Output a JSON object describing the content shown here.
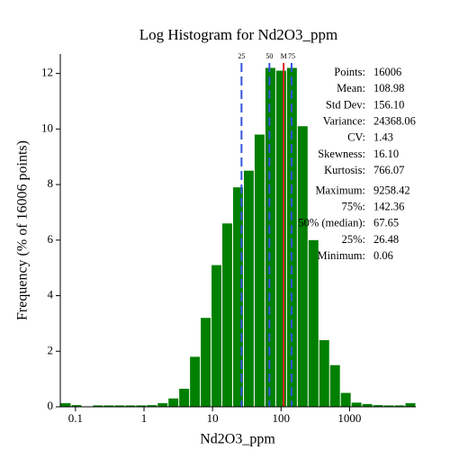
{
  "chart_data": {
    "type": "histogram",
    "title": "Log Histogram for Nd2O3_ppm",
    "x_label": "Nd2O3_ppm",
    "y_label": "Frequency (% of 16006 points)",
    "log_x": true,
    "color": "#008000",
    "bins": [
      0.06,
      0.0862,
      0.1238,
      0.1778,
      0.2553,
      0.3667,
      0.5266,
      0.7563,
      1.086,
      1.56,
      2.241,
      3.218,
      4.622,
      6.638,
      9.533,
      13.69,
      19.66,
      28.24,
      40.56,
      58.25,
      83.66,
      120.2,
      172.6,
      247.8,
      355.9,
      511.2,
      734.2,
      1054,
      1514,
      2175,
      3123,
      4486,
      6442,
      9258.42
    ],
    "values": [
      0.13,
      0.06,
      0,
      0.05,
      0.05,
      0.05,
      0.05,
      0.05,
      0.06,
      0.13,
      0.3,
      0.65,
      1.8,
      3.2,
      5.1,
      6.6,
      7.9,
      8.5,
      9.8,
      12.2,
      12.1,
      12.2,
      10.1,
      6.0,
      2.4,
      1.5,
      0.5,
      0.15,
      0.1,
      0.06,
      0.05,
      0.05,
      0.13
    ],
    "xlim": [
      0.06,
      9258.42
    ],
    "ylim": [
      0,
      12.7
    ],
    "xticks": [
      0.1,
      1,
      10,
      100,
      1000
    ],
    "yticks": [
      0,
      2,
      4,
      6,
      8,
      10,
      12
    ],
    "markers": [
      {
        "label": "25",
        "value": 26.48,
        "color": "#3355dd",
        "dashed": true
      },
      {
        "label": "50",
        "value": 67.65,
        "color": "#3355dd",
        "dashed": true
      },
      {
        "label": "M",
        "value": 108.98,
        "color": "#dd2222",
        "dashed": false
      },
      {
        "label": "75",
        "value": 142.36,
        "color": "#3355dd",
        "dashed": true
      }
    ],
    "stats": [
      [
        {
          "label": "Points:",
          "value": "16006",
          "color": "#000000"
        },
        {
          "label": "Mean:",
          "value": "108.98",
          "color": "#cc0000"
        },
        {
          "label": "Std Dev:",
          "value": "156.10",
          "color": "#000000"
        },
        {
          "label": "Variance:",
          "value": "24368.06",
          "color": "#000000"
        },
        {
          "label": "CV:",
          "value": "1.43",
          "color": "#000000"
        },
        {
          "label": "Skewness:",
          "value": "16.10",
          "color": "#000000"
        },
        {
          "label": "Kurtosis:",
          "value": "766.07",
          "color": "#000000"
        }
      ],
      [
        {
          "label": "Maximum:",
          "value": "9258.42",
          "color": "#000000"
        },
        {
          "label": "75%:",
          "value": "142.36",
          "color": "#0000aa"
        },
        {
          "label": "50% (median):",
          "value": "67.65",
          "color": "#0000aa"
        },
        {
          "label": "25%:",
          "value": "26.48",
          "color": "#0000aa"
        },
        {
          "label": "Minimum:",
          "value": "0.06",
          "color": "#000000"
        }
      ]
    ]
  }
}
